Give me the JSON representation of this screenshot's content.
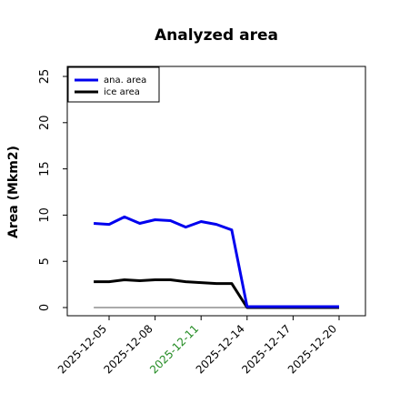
{
  "chart_data": {
    "type": "line",
    "title": "Analyzed area",
    "xlabel": "",
    "ylabel": "Area (Mkm2)",
    "ylim": [
      0,
      25
    ],
    "y_ticks": [
      0,
      5,
      10,
      15,
      20,
      25
    ],
    "x_tick_labels": [
      "2025-12-05",
      "2025-12-08",
      "2025-12-11",
      "2025-12-14",
      "2025-12-17",
      "2025-12-20"
    ],
    "x_tick_label_colors": [
      "#000000",
      "#000000",
      "#228B22",
      "#000000",
      "#000000",
      "#000000"
    ],
    "x_days": [
      "2025-12-04",
      "2025-12-05",
      "2025-12-06",
      "2025-12-07",
      "2025-12-08",
      "2025-12-09",
      "2025-12-10",
      "2025-12-11",
      "2025-12-12",
      "2025-12-13",
      "2025-12-14",
      "2025-12-15",
      "2025-12-16",
      "2025-12-17",
      "2025-12-18",
      "2025-12-19",
      "2025-12-20"
    ],
    "series": [
      {
        "name": "ana. area",
        "color": "#0000ee",
        "values": [
          9.1,
          9.0,
          9.8,
          9.1,
          9.5,
          9.4,
          8.7,
          9.3,
          9.0,
          8.4,
          0.1,
          0.1,
          0.1,
          0.1,
          0.1,
          0.1,
          0.1
        ]
      },
      {
        "name": "ice area",
        "color": "#000000",
        "values": [
          2.8,
          2.8,
          3.0,
          2.9,
          3.0,
          3.0,
          2.8,
          2.7,
          2.6,
          2.6,
          0.0,
          0.0,
          0.0,
          0.0,
          0.0,
          0.0,
          0.0
        ]
      }
    ],
    "zero_line": true,
    "grid": false,
    "legend_position": "top-left"
  }
}
